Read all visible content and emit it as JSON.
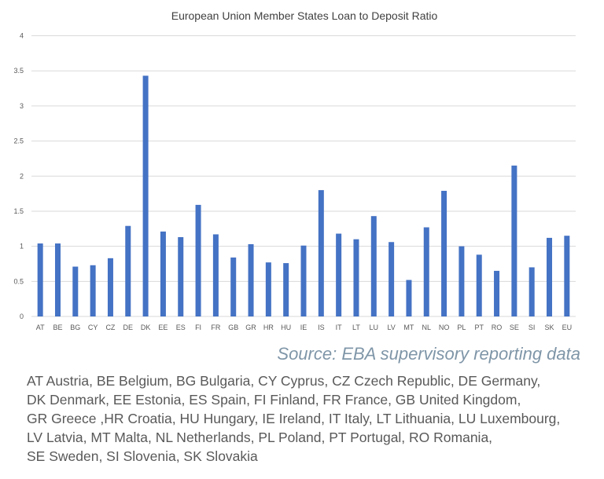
{
  "chart_data": {
    "type": "bar",
    "title": "European Union Member States Loan to Deposit Ratio",
    "xlabel": "",
    "ylabel": "",
    "ylim": [
      0,
      4
    ],
    "yticks": [
      "0",
      "0.5",
      "1",
      "1.5",
      "2",
      "2.5",
      "3",
      "3.5",
      "4"
    ],
    "grid": true,
    "bar_color": "#4472C4",
    "categories": [
      "AT",
      "BE",
      "BG",
      "CY",
      "CZ",
      "DE",
      "DK",
      "EE",
      "ES",
      "FI",
      "FR",
      "GB",
      "GR",
      "HR",
      "HU",
      "IE",
      "IS",
      "IT",
      "LT",
      "LU",
      "LV",
      "MT",
      "NL",
      "NO",
      "PL",
      "PT",
      "RO",
      "SE",
      "SI",
      "SK",
      "EU"
    ],
    "values": [
      1.04,
      1.04,
      0.71,
      0.73,
      0.83,
      1.29,
      3.43,
      1.21,
      1.13,
      1.59,
      1.17,
      0.84,
      1.03,
      0.77,
      0.76,
      1.01,
      1.8,
      1.18,
      1.1,
      1.43,
      1.06,
      0.52,
      1.27,
      1.79,
      1.0,
      0.88,
      0.65,
      2.15,
      0.7,
      1.12,
      1.15
    ]
  },
  "source": "Source: EBA supervisory reporting data",
  "legend_lines": [
    "AT Austria, BE Belgium, BG Bulgaria, CY Cyprus, CZ Czech Republic, DE Germany,",
    "DK Denmark, EE Estonia, ES Spain, FI Finland, FR France, GB United Kingdom,",
    "GR Greece ,HR Croatia, HU Hungary, IE Ireland, IT Italy, LT Lithuania, LU Luxembourg,",
    "LV Latvia, MT Malta, NL Netherlands, PL Poland, PT Portugal, RO Romania,",
    "SE Sweden, SI Slovenia, SK Slovakia"
  ]
}
